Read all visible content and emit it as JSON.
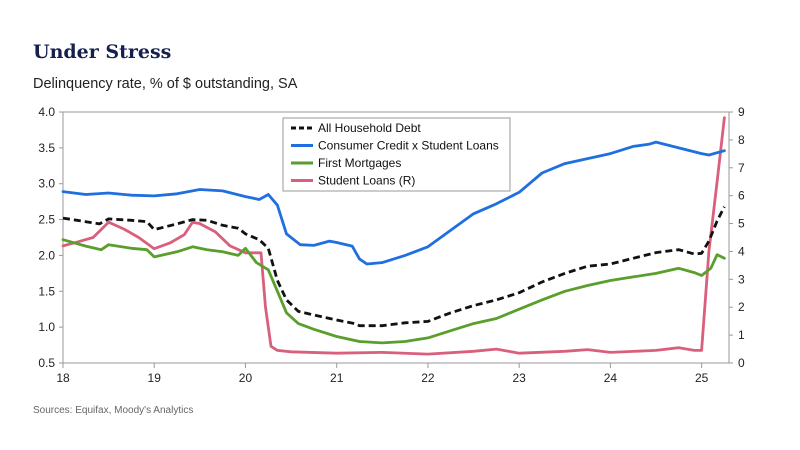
{
  "header": {
    "title": "Under Stress",
    "subtitle": "Delinquency rate, % of $ outstanding, SA"
  },
  "footer": {
    "source": "Sources: Equifax, Moody's Analytics"
  },
  "chart_data": {
    "type": "line",
    "title": "Under Stress",
    "subtitle": "Delinquency rate, % of $ outstanding, SA",
    "xlabel": "",
    "ylabel": "",
    "x_ticks": [
      "18",
      "19",
      "20",
      "21",
      "22",
      "23",
      "24",
      "25"
    ],
    "y_left_ticks": [
      "4.0",
      "3.5",
      "3.0",
      "2.5",
      "2.0",
      "1.5",
      "1.0",
      "0.5"
    ],
    "y_right_ticks": [
      "9",
      "8",
      "7",
      "6",
      "5",
      "4",
      "3",
      "2",
      "1",
      "0"
    ],
    "x_range": [
      2018.0,
      2025.3
    ],
    "y_left_range": [
      0.5,
      4.0
    ],
    "y_right_range": [
      0,
      9
    ],
    "grid": false,
    "legend_position": "top-center",
    "series": [
      {
        "name": "All Household Debt",
        "axis": "left",
        "color": "#111111",
        "style": "dashed",
        "points": [
          [
            2018.0,
            2.52
          ],
          [
            2018.25,
            2.47
          ],
          [
            2018.4,
            2.44
          ],
          [
            2018.5,
            2.51
          ],
          [
            2018.75,
            2.49
          ],
          [
            2018.92,
            2.47
          ],
          [
            2019.0,
            2.36
          ],
          [
            2019.25,
            2.44
          ],
          [
            2019.42,
            2.5
          ],
          [
            2019.58,
            2.49
          ],
          [
            2019.75,
            2.42
          ],
          [
            2019.92,
            2.38
          ],
          [
            2020.0,
            2.3
          ],
          [
            2020.15,
            2.22
          ],
          [
            2020.25,
            2.1
          ],
          [
            2020.35,
            1.65
          ],
          [
            2020.45,
            1.38
          ],
          [
            2020.58,
            1.22
          ],
          [
            2020.75,
            1.17
          ],
          [
            2021.0,
            1.1
          ],
          [
            2021.2,
            1.05
          ],
          [
            2021.25,
            1.02
          ],
          [
            2021.5,
            1.02
          ],
          [
            2021.75,
            1.06
          ],
          [
            2022.0,
            1.08
          ],
          [
            2022.25,
            1.2
          ],
          [
            2022.5,
            1.3
          ],
          [
            2022.75,
            1.38
          ],
          [
            2023.0,
            1.48
          ],
          [
            2023.25,
            1.63
          ],
          [
            2023.5,
            1.75
          ],
          [
            2023.75,
            1.85
          ],
          [
            2024.0,
            1.88
          ],
          [
            2024.25,
            1.96
          ],
          [
            2024.5,
            2.04
          ],
          [
            2024.75,
            2.08
          ],
          [
            2024.92,
            2.02
          ],
          [
            2025.0,
            2.03
          ],
          [
            2025.08,
            2.2
          ],
          [
            2025.17,
            2.48
          ],
          [
            2025.25,
            2.68
          ]
        ]
      },
      {
        "name": "Consumer Credit x Student Loans",
        "axis": "left",
        "color": "#1f6fe0",
        "style": "solid",
        "points": [
          [
            2018.0,
            2.89
          ],
          [
            2018.25,
            2.85
          ],
          [
            2018.5,
            2.87
          ],
          [
            2018.75,
            2.84
          ],
          [
            2019.0,
            2.83
          ],
          [
            2019.25,
            2.86
          ],
          [
            2019.5,
            2.92
          ],
          [
            2019.75,
            2.9
          ],
          [
            2020.0,
            2.82
          ],
          [
            2020.15,
            2.78
          ],
          [
            2020.25,
            2.85
          ],
          [
            2020.35,
            2.7
          ],
          [
            2020.45,
            2.3
          ],
          [
            2020.6,
            2.15
          ],
          [
            2020.75,
            2.14
          ],
          [
            2020.92,
            2.2
          ],
          [
            2021.0,
            2.18
          ],
          [
            2021.17,
            2.13
          ],
          [
            2021.25,
            1.95
          ],
          [
            2021.33,
            1.88
          ],
          [
            2021.5,
            1.9
          ],
          [
            2021.75,
            2.0
          ],
          [
            2022.0,
            2.12
          ],
          [
            2022.25,
            2.35
          ],
          [
            2022.5,
            2.58
          ],
          [
            2022.75,
            2.72
          ],
          [
            2023.0,
            2.88
          ],
          [
            2023.25,
            3.15
          ],
          [
            2023.5,
            3.28
          ],
          [
            2023.75,
            3.35
          ],
          [
            2024.0,
            3.42
          ],
          [
            2024.25,
            3.52
          ],
          [
            2024.42,
            3.55
          ],
          [
            2024.5,
            3.58
          ],
          [
            2024.75,
            3.5
          ],
          [
            2025.0,
            3.42
          ],
          [
            2025.08,
            3.4
          ],
          [
            2025.25,
            3.46
          ]
        ]
      },
      {
        "name": "First Mortgages",
        "axis": "left",
        "color": "#5a9e2b",
        "style": "solid",
        "points": [
          [
            2018.0,
            2.22
          ],
          [
            2018.25,
            2.13
          ],
          [
            2018.42,
            2.08
          ],
          [
            2018.5,
            2.15
          ],
          [
            2018.75,
            2.1
          ],
          [
            2018.92,
            2.08
          ],
          [
            2019.0,
            1.98
          ],
          [
            2019.25,
            2.05
          ],
          [
            2019.42,
            2.12
          ],
          [
            2019.58,
            2.08
          ],
          [
            2019.75,
            2.05
          ],
          [
            2019.92,
            2.0
          ],
          [
            2020.0,
            2.1
          ],
          [
            2020.12,
            1.9
          ],
          [
            2020.25,
            1.8
          ],
          [
            2020.35,
            1.5
          ],
          [
            2020.45,
            1.2
          ],
          [
            2020.58,
            1.05
          ],
          [
            2020.75,
            0.97
          ],
          [
            2021.0,
            0.87
          ],
          [
            2021.25,
            0.8
          ],
          [
            2021.5,
            0.78
          ],
          [
            2021.75,
            0.8
          ],
          [
            2022.0,
            0.85
          ],
          [
            2022.25,
            0.95
          ],
          [
            2022.5,
            1.05
          ],
          [
            2022.75,
            1.12
          ],
          [
            2023.0,
            1.25
          ],
          [
            2023.25,
            1.38
          ],
          [
            2023.5,
            1.5
          ],
          [
            2023.75,
            1.58
          ],
          [
            2024.0,
            1.65
          ],
          [
            2024.25,
            1.7
          ],
          [
            2024.5,
            1.75
          ],
          [
            2024.75,
            1.82
          ],
          [
            2024.92,
            1.76
          ],
          [
            2025.0,
            1.72
          ],
          [
            2025.1,
            1.82
          ],
          [
            2025.17,
            2.01
          ],
          [
            2025.25,
            1.96
          ]
        ]
      },
      {
        "name": "Student Loans (R)",
        "axis": "right",
        "color": "#d9607c",
        "style": "solid",
        "points": [
          [
            2018.0,
            4.2
          ],
          [
            2018.17,
            4.35
          ],
          [
            2018.33,
            4.5
          ],
          [
            2018.5,
            5.05
          ],
          [
            2018.67,
            4.8
          ],
          [
            2018.83,
            4.5
          ],
          [
            2019.0,
            4.1
          ],
          [
            2019.17,
            4.3
          ],
          [
            2019.33,
            4.6
          ],
          [
            2019.42,
            5.05
          ],
          [
            2019.5,
            5.0
          ],
          [
            2019.67,
            4.7
          ],
          [
            2019.83,
            4.2
          ],
          [
            2020.0,
            3.95
          ],
          [
            2020.17,
            3.95
          ],
          [
            2020.22,
            2.0
          ],
          [
            2020.28,
            0.6
          ],
          [
            2020.35,
            0.45
          ],
          [
            2020.5,
            0.4
          ],
          [
            2021.0,
            0.35
          ],
          [
            2021.5,
            0.38
          ],
          [
            2022.0,
            0.32
          ],
          [
            2022.5,
            0.42
          ],
          [
            2022.75,
            0.5
          ],
          [
            2023.0,
            0.35
          ],
          [
            2023.5,
            0.42
          ],
          [
            2023.75,
            0.48
          ],
          [
            2024.0,
            0.38
          ],
          [
            2024.5,
            0.45
          ],
          [
            2024.75,
            0.55
          ],
          [
            2024.92,
            0.45
          ],
          [
            2025.0,
            0.45
          ],
          [
            2025.08,
            4.0
          ],
          [
            2025.17,
            6.5
          ],
          [
            2025.25,
            8.8
          ]
        ]
      }
    ]
  }
}
